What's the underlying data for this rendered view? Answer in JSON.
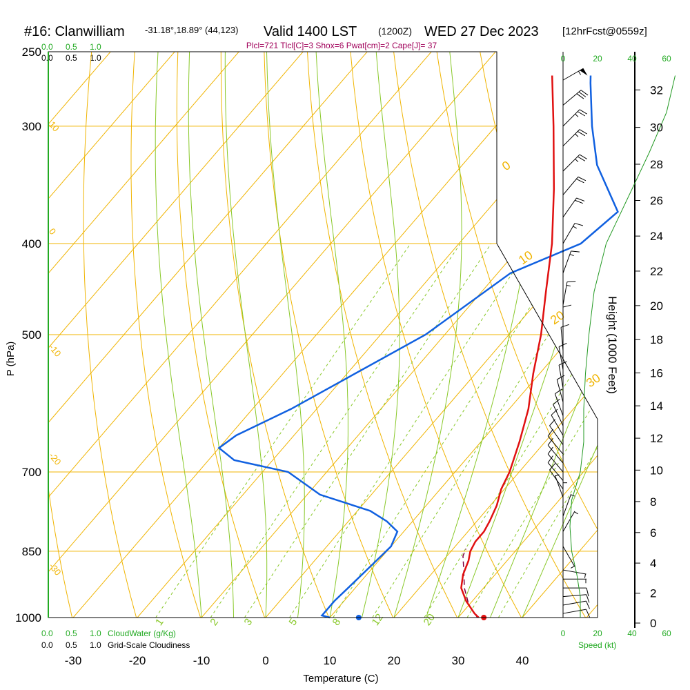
{
  "header": {
    "station": "#16: Clanwilliam",
    "coords": "-31.18°,18.89° (44,123)",
    "valid_main": "Valid 1400 LST",
    "valid_utc": "(1200Z)",
    "date": "WED 27 Dec 2023",
    "forecast": "[12hrFcst@0559z]",
    "indices": "Plcl=721 Tlcl[C]=3 Shox=6 Pwat[cm]=2 Cape[J]= 37"
  },
  "colors": {
    "isotherm": "#f0b400",
    "dry_adiabat": "#f0b400",
    "moist_adiabat": "#88c828",
    "mixing_ratio": "#88c828",
    "temperature": "#e01010",
    "dewpoint": "#1060e0",
    "parcel": "#800040",
    "wind_speed": "#229922",
    "cloud_scale": "#22aa22",
    "indices_text": "#a0005a"
  },
  "chart_data": {
    "type": "skew-t",
    "xlabel": "Temperature (C)",
    "ylabel": "P (hPa)",
    "right_axis_label": "Height (1000 Feet)",
    "speed_axis_label": "Speed (kt)",
    "x_ticks": [
      -30,
      -20,
      -10,
      0,
      10,
      20,
      30,
      40
    ],
    "pressure_ticks": [
      250,
      300,
      400,
      500,
      700,
      850,
      1000
    ],
    "height_ticks": [
      0,
      2,
      4,
      6,
      8,
      10,
      12,
      14,
      16,
      18,
      20,
      22,
      24,
      26,
      28,
      30,
      32
    ],
    "speed_ticks_black": [
      "0",
      "20",
      "40",
      "60"
    ],
    "speed_ticks_green": [
      "0",
      "20",
      "40",
      "60"
    ],
    "cloud_ticks": [
      "0.0",
      "0.5",
      "1.0"
    ],
    "cloud_water_label": "CloudWater (g/Kg)",
    "cloudiness_label": "Grid-Scale Cloudiness",
    "mixing_ratio_labels": [
      "1",
      "2",
      "3",
      "5",
      "8",
      "12",
      "20"
    ],
    "dry_adiabat_labels": [
      "10",
      "0",
      "-10",
      "-20",
      "-30"
    ],
    "moist_adiabat_labels": [
      "0",
      "10",
      "20",
      "30"
    ],
    "temperature": [
      [
        1000,
        33.2
      ],
      [
        990,
        32
      ],
      [
        960,
        29
      ],
      [
        930,
        26.5
      ],
      [
        900,
        25
      ],
      [
        870,
        24
      ],
      [
        850,
        23
      ],
      [
        830,
        22.5
      ],
      [
        810,
        22.5
      ],
      [
        790,
        22
      ],
      [
        760,
        21
      ],
      [
        730,
        19.5
      ],
      [
        700,
        18.5
      ],
      [
        650,
        16
      ],
      [
        600,
        13
      ],
      [
        550,
        9
      ],
      [
        500,
        5
      ],
      [
        450,
        0
      ],
      [
        400,
        -5.5
      ],
      [
        350,
        -12.5
      ],
      [
        300,
        -21
      ],
      [
        265,
        -28
      ]
    ],
    "dewpoint": [
      [
        1000,
        10
      ],
      [
        995,
        8.5
      ],
      [
        960,
        8.5
      ],
      [
        920,
        9
      ],
      [
        880,
        9.5
      ],
      [
        840,
        10
      ],
      [
        810,
        9
      ],
      [
        790,
        6
      ],
      [
        770,
        2
      ],
      [
        740,
        -8
      ],
      [
        700,
        -16
      ],
      [
        680,
        -26
      ],
      [
        660,
        -30
      ],
      [
        640,
        -29
      ],
      [
        600,
        -24
      ],
      [
        500,
        -13
      ],
      [
        430,
        -8
      ],
      [
        400,
        -1
      ],
      [
        370,
        0.5
      ],
      [
        330,
        -9
      ],
      [
        300,
        -15
      ],
      [
        270,
        -21
      ],
      [
        265,
        -22
      ]
    ],
    "parcel": [
      [
        1000,
        33
      ],
      [
        970,
        30
      ],
      [
        930,
        27
      ],
      [
        890,
        24.5
      ],
      [
        860,
        22.5
      ],
      [
        845,
        22
      ]
    ],
    "surface_dewpoint_marker": 14.5,
    "surface_temperature_marker": 34,
    "wind_barbs": [
      {
        "p": 990,
        "dir": 260,
        "spd": 8
      },
      {
        "p": 970,
        "dir": 260,
        "spd": 8
      },
      {
        "p": 950,
        "dir": 265,
        "spd": 8
      },
      {
        "p": 930,
        "dir": 270,
        "spd": 8
      },
      {
        "p": 910,
        "dir": 270,
        "spd": 6
      },
      {
        "p": 890,
        "dir": 280,
        "spd": 5
      },
      {
        "p": 840,
        "dir": 330,
        "spd": 5
      },
      {
        "p": 810,
        "dir": 210,
        "spd": 3
      },
      {
        "p": 780,
        "dir": 200,
        "spd": 5
      },
      {
        "p": 760,
        "dir": 180,
        "spd": 5
      },
      {
        "p": 745,
        "dir": 160,
        "spd": 5
      },
      {
        "p": 730,
        "dir": 145,
        "spd": 10
      },
      {
        "p": 715,
        "dir": 140,
        "spd": 10
      },
      {
        "p": 700,
        "dir": 140,
        "spd": 10
      },
      {
        "p": 685,
        "dir": 140,
        "spd": 10
      },
      {
        "p": 670,
        "dir": 140,
        "spd": 10
      },
      {
        "p": 655,
        "dir": 145,
        "spd": 10
      },
      {
        "p": 640,
        "dir": 150,
        "spd": 10
      },
      {
        "p": 625,
        "dir": 155,
        "spd": 10
      },
      {
        "p": 610,
        "dir": 160,
        "spd": 10
      },
      {
        "p": 590,
        "dir": 165,
        "spd": 10
      },
      {
        "p": 570,
        "dir": 170,
        "spd": 10
      },
      {
        "p": 545,
        "dir": 170,
        "spd": 10
      },
      {
        "p": 520,
        "dir": 175,
        "spd": 10
      },
      {
        "p": 495,
        "dir": 180,
        "spd": 10
      },
      {
        "p": 465,
        "dir": 190,
        "spd": 15
      },
      {
        "p": 430,
        "dir": 200,
        "spd": 15
      },
      {
        "p": 400,
        "dir": 210,
        "spd": 15
      },
      {
        "p": 375,
        "dir": 215,
        "spd": 20
      },
      {
        "p": 355,
        "dir": 220,
        "spd": 20
      },
      {
        "p": 335,
        "dir": 225,
        "spd": 25
      },
      {
        "p": 315,
        "dir": 225,
        "spd": 25
      },
      {
        "p": 300,
        "dir": 225,
        "spd": 25
      },
      {
        "p": 285,
        "dir": 230,
        "spd": 30
      },
      {
        "p": 268,
        "dir": 240,
        "spd": 55
      }
    ],
    "wind_speed_profile": [
      [
        1000,
        10
      ],
      [
        950,
        10
      ],
      [
        900,
        8
      ],
      [
        850,
        5
      ],
      [
        800,
        4
      ],
      [
        750,
        5
      ],
      [
        700,
        10
      ],
      [
        650,
        12
      ],
      [
        600,
        12
      ],
      [
        550,
        13
      ],
      [
        500,
        15
      ],
      [
        450,
        18
      ],
      [
        400,
        25
      ],
      [
        350,
        40
      ],
      [
        320,
        50
      ],
      [
        290,
        60
      ],
      [
        265,
        65
      ]
    ]
  }
}
